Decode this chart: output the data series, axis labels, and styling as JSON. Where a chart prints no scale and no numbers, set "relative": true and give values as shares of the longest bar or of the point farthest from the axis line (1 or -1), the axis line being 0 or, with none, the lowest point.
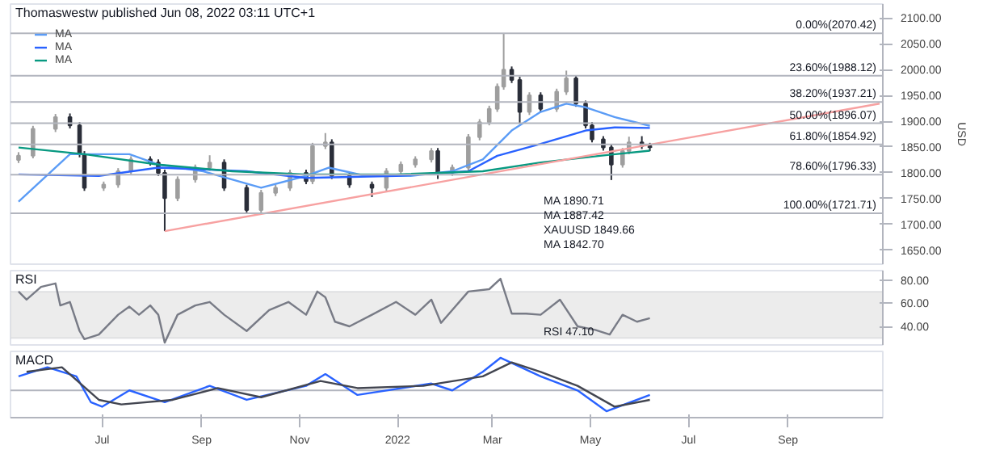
{
  "chart_data": [
    {
      "type": "candlestick",
      "title": "Thomaswestw published Jun 08, 2022 03:11 UTC+1",
      "ylabel": "USD",
      "x": [
        "2021-05-10",
        "2021-05-19",
        "2021-06-02",
        "2021-06-11",
        "2021-06-17",
        "2021-06-20",
        "2021-07-02",
        "2021-07-11",
        "2021-07-19",
        "2021-07-31",
        "2021-08-05",
        "2021-08-09",
        "2021-08-17",
        "2021-08-28",
        "2021-09-06",
        "2021-09-15",
        "2021-09-29",
        "2021-10-08",
        "2021-10-17",
        "2021-10-26",
        "2021-11-05",
        "2021-11-09",
        "2021-11-17",
        "2021-11-21",
        "2021-12-02",
        "2021-12-16",
        "2021-12-25",
        "2022-01-03",
        "2022-01-12",
        "2022-01-22",
        "2022-01-26",
        "2022-02-04",
        "2022-02-14",
        "2022-02-21",
        "2022-02-27",
        "2022-03-04",
        "2022-03-08",
        "2022-03-13",
        "2022-03-18",
        "2022-03-24",
        "2022-03-31",
        "2022-04-10",
        "2022-04-16",
        "2022-04-22",
        "2022-04-28",
        "2022-05-02",
        "2022-05-09",
        "2022-05-14",
        "2022-05-21",
        "2022-05-25",
        "2022-06-02",
        "2022-06-07"
      ],
      "ohlc": [
        [
          1825,
          1840,
          1819,
          1833
        ],
        [
          1833,
          1891,
          1828,
          1885
        ],
        [
          1885,
          1914,
          1879,
          1908
        ],
        [
          1908,
          1915,
          1886,
          1892
        ],
        [
          1892,
          1898,
          1830,
          1836
        ],
        [
          1836,
          1842,
          1765,
          1771
        ],
        [
          1771,
          1783,
          1765,
          1777
        ],
        [
          1777,
          1809,
          1771,
          1803
        ],
        [
          1803,
          1832,
          1797,
          1826
        ],
        [
          1826,
          1832,
          1814,
          1820
        ],
        [
          1820,
          1826,
          1794,
          1800
        ],
        [
          1800,
          1806,
          1687,
          1751
        ],
        [
          1751,
          1793,
          1745,
          1787
        ],
        [
          1787,
          1816,
          1781,
          1810
        ],
        [
          1810,
          1834,
          1804,
          1820
        ],
        [
          1820,
          1826,
          1765,
          1771
        ],
        [
          1771,
          1777,
          1721.71,
          1728
        ],
        [
          1728,
          1767,
          1722,
          1761
        ],
        [
          1761,
          1777,
          1755,
          1771
        ],
        [
          1771,
          1806,
          1765,
          1800
        ],
        [
          1800,
          1806,
          1778,
          1784
        ],
        [
          1784,
          1858,
          1778,
          1852
        ],
        [
          1852,
          1877,
          1846,
          1859
        ],
        [
          1859,
          1865,
          1788,
          1794
        ],
        [
          1794,
          1800,
          1771,
          1777
        ],
        [
          1777,
          1783,
          1753,
          1771
        ],
        [
          1771,
          1809,
          1765,
          1803
        ],
        [
          1803,
          1822,
          1797,
          1816
        ],
        [
          1816,
          1832,
          1810,
          1826
        ],
        [
          1826,
          1848,
          1820,
          1842
        ],
        [
          1842,
          1848,
          1788,
          1800
        ],
        [
          1800,
          1816,
          1794,
          1810
        ],
        [
          1810,
          1875,
          1804,
          1869
        ],
        [
          1869,
          1904,
          1863,
          1898
        ],
        [
          1898,
          1930,
          1892,
          1924
        ],
        [
          1924,
          1973,
          1918,
          1967
        ],
        [
          1967,
          2070.42,
          1961,
          2000
        ],
        [
          2000,
          2006,
          1974,
          1980
        ],
        [
          1980,
          1986,
          1895,
          1918
        ],
        [
          1918,
          1956,
          1912,
          1950
        ],
        [
          1950,
          1956,
          1918,
          1924
        ],
        [
          1924,
          1963,
          1918,
          1957
        ],
        [
          1957,
          1998,
          1951,
          1983
        ],
        [
          1983,
          1989,
          1928,
          1934
        ],
        [
          1934,
          1940,
          1886,
          1892
        ],
        [
          1892,
          1898,
          1859,
          1865
        ],
        [
          1865,
          1871,
          1843,
          1849
        ],
        [
          1849,
          1855,
          1786,
          1816
        ],
        [
          1816,
          1848,
          1810,
          1842
        ],
        [
          1842,
          1870,
          1836,
          1859
        ],
        [
          1859,
          1871,
          1846,
          1852
        ],
        [
          1852,
          1858,
          1842,
          1849.66
        ]
      ],
      "series": [
        {
          "name": "MA",
          "type": "line",
          "color": "#5b9cf6",
          "x": [
            "2021-05-10",
            "2021-06-11",
            "2021-07-18",
            "2021-08-05",
            "2021-09-02",
            "2021-10-08",
            "2021-11-05",
            "2021-11-19",
            "2021-12-12",
            "2022-01-09",
            "2022-02-04",
            "2022-02-23",
            "2022-03-13",
            "2022-03-31",
            "2022-04-16",
            "2022-04-28",
            "2022-05-16",
            "2022-06-07"
          ],
          "values": [
            1744,
            1836,
            1836,
            1816,
            1803,
            1771,
            1794,
            1810,
            1794,
            1794,
            1803,
            1826,
            1882,
            1918,
            1934,
            1927,
            1908,
            1891
          ]
        },
        {
          "name": "MA",
          "type": "line",
          "color": "#2962ff",
          "x": [
            "2021-05-10",
            "2021-06-29",
            "2021-08-05",
            "2021-09-29",
            "2021-11-05",
            "2021-12-31",
            "2022-02-14",
            "2022-03-04",
            "2022-03-31",
            "2022-04-28",
            "2022-05-16",
            "2022-06-07"
          ],
          "values": [
            1797,
            1794,
            1810,
            1803,
            1790,
            1794,
            1803,
            1833,
            1856,
            1882,
            1888,
            1887
          ]
        },
        {
          "name": "MA",
          "type": "line",
          "color": "#089981",
          "x": [
            "2021-05-10",
            "2021-06-20",
            "2021-08-05",
            "2021-09-20",
            "2021-11-05",
            "2021-12-31",
            "2022-02-23",
            "2022-03-31",
            "2022-05-07",
            "2022-06-07"
          ],
          "values": [
            1849,
            1836,
            1816,
            1803,
            1797,
            1797,
            1803,
            1820,
            1833,
            1843
          ]
        },
        {
          "type": "line",
          "color": "#f7a1a1",
          "x": [
            "2021-08-09",
            "2022-10-28"
          ],
          "values": [
            1687,
            1934
          ]
        }
      ],
      "ref_lines": [
        {
          "axis": "y",
          "value": 2070.42,
          "label": "0.00%(2070.42)",
          "color": "#b2b5be"
        },
        {
          "axis": "y",
          "value": 1988.12,
          "label": "23.60%(1988.12)",
          "color": "#b2b5be"
        },
        {
          "axis": "y",
          "value": 1937.21,
          "label": "38.20%(1937.21)",
          "color": "#b2b5be"
        },
        {
          "axis": "y",
          "value": 1896.07,
          "label": "50.00%(1896.07)",
          "color": "#b2b5be"
        },
        {
          "axis": "y",
          "value": 1854.92,
          "label": "61.80%(1854.92)",
          "color": "#b2b5be"
        },
        {
          "axis": "y",
          "value": 1796.33,
          "label": "78.60%(1796.33)",
          "color": "#b2b5be"
        },
        {
          "axis": "y",
          "value": 1721.71,
          "label": "100.00%(1721.71)",
          "color": "#b2b5be"
        }
      ],
      "annotations": [
        "MA 1890.71",
        "MA 1887.42",
        "XAUUSD 1849.66",
        "MA 1842.70"
      ],
      "xlim": [
        "2021-05-05",
        "2022-10-30"
      ],
      "ylim": [
        1623,
        2127
      ],
      "yticks": [
        {
          "value": 1650,
          "label": "1650.00"
        },
        {
          "value": 1700,
          "label": "1700.00"
        },
        {
          "value": 1750,
          "label": "1750.00"
        },
        {
          "value": 1800,
          "label": "1800.00"
        },
        {
          "value": 1850,
          "label": "1850.00"
        },
        {
          "value": 1900,
          "label": "1900.00"
        },
        {
          "value": 1950,
          "label": "1950.00"
        },
        {
          "value": 2000,
          "label": "2000.00"
        },
        {
          "value": 2050,
          "label": "2050.00"
        },
        {
          "value": 2100,
          "label": "2100.00"
        }
      ],
      "tick_labels": "y",
      "legend": "top left"
    },
    {
      "type": "line",
      "title": "RSI",
      "x": [
        "2021-05-10",
        "2021-05-15",
        "2021-05-24",
        "2021-06-02",
        "2021-06-05",
        "2021-06-11",
        "2021-06-17",
        "2021-06-20",
        "2021-06-29",
        "2021-07-11",
        "2021-07-18",
        "2021-07-24",
        "2021-07-31",
        "2021-08-05",
        "2021-08-09",
        "2021-08-17",
        "2021-08-28",
        "2021-09-06",
        "2021-09-15",
        "2021-09-29",
        "2021-10-13",
        "2021-10-25",
        "2021-11-05",
        "2021-11-12",
        "2021-11-17",
        "2021-11-23",
        "2021-12-02",
        "2021-12-16",
        "2021-12-31",
        "2022-01-12",
        "2022-01-22",
        "2022-01-28",
        "2022-02-14",
        "2022-02-27",
        "2022-03-06",
        "2022-03-13",
        "2022-03-22",
        "2022-03-31",
        "2022-04-12",
        "2022-04-23",
        "2022-05-04",
        "2022-05-13",
        "2022-05-21",
        "2022-05-30",
        "2022-06-07"
      ],
      "series": [
        {
          "color": "#787b86",
          "values": [
            70,
            63,
            74,
            77,
            58,
            61,
            36,
            29,
            33,
            50,
            57,
            50,
            58,
            50,
            26,
            50,
            58,
            61,
            50,
            36,
            54,
            61,
            50,
            70,
            65,
            44,
            40,
            50,
            61,
            50,
            63,
            43,
            70,
            72,
            81,
            51,
            51,
            50,
            63,
            40,
            37,
            33,
            50,
            44,
            47
          ]
        }
      ],
      "bands": [
        {
          "axis": "y",
          "from": 30,
          "to": 70,
          "color": "#ececec"
        }
      ],
      "annotations": [
        "RSI 47.10"
      ],
      "xlim": [
        "2021-05-05",
        "2022-10-30"
      ],
      "ylim": [
        24,
        88
      ],
      "yticks": [
        {
          "value": 40,
          "label": "40.00"
        },
        {
          "value": 60,
          "label": "60.00"
        },
        {
          "value": 80,
          "label": "80.00"
        }
      ],
      "tick_labels": "y"
    },
    {
      "type": "line",
      "title": "MACD",
      "relative": true,
      "series": [
        {
          "color": "#2962ff",
          "x": [
            "2021-05-10",
            "2021-05-28",
            "2021-06-15",
            "2021-06-24",
            "2021-07-01",
            "2021-07-18",
            "2021-08-09",
            "2021-09-06",
            "2021-09-29",
            "2021-11-05",
            "2021-11-17",
            "2021-12-07",
            "2022-01-22",
            "2022-02-04",
            "2022-02-23",
            "2022-03-06",
            "2022-03-31",
            "2022-04-23",
            "2022-05-11",
            "2022-06-07"
          ],
          "values": [
            0.43,
            0.71,
            0.43,
            -0.36,
            -0.5,
            0,
            -0.36,
            0.14,
            -0.29,
            0.14,
            0.5,
            -0.14,
            0.21,
            0,
            0.57,
            1,
            0.43,
            0,
            -0.64,
            -0.14
          ]
        },
        {
          "color": "#434651",
          "x": [
            "2021-05-15",
            "2021-06-06",
            "2021-06-29",
            "2021-07-13",
            "2021-08-14",
            "2021-09-11",
            "2021-10-08",
            "2021-11-14",
            "2021-12-07",
            "2022-01-17",
            "2022-02-23",
            "2022-03-13",
            "2022-03-31",
            "2022-04-23",
            "2022-05-16",
            "2022-06-07"
          ],
          "values": [
            0.57,
            0.71,
            -0.29,
            -0.43,
            -0.29,
            0.07,
            -0.21,
            0.29,
            0.07,
            0.14,
            0.43,
            0.86,
            0.57,
            0.14,
            -0.5,
            -0.29
          ]
        }
      ],
      "xlim": [
        "2021-05-05",
        "2022-10-30"
      ],
      "xticks": [
        {
          "value": "2021-07-01",
          "label": "Jul"
        },
        {
          "value": "2021-09-01",
          "label": "Sep"
        },
        {
          "value": "2021-11-01",
          "label": "Nov"
        },
        {
          "value": "2022-01-01",
          "label": "2022"
        },
        {
          "value": "2022-03-01",
          "label": "Mar"
        },
        {
          "value": "2022-05-01",
          "label": "May"
        },
        {
          "value": "2022-07-01",
          "label": "Jul"
        },
        {
          "value": "2022-09-01",
          "label": "Sep"
        }
      ],
      "tick_labels": "x"
    }
  ]
}
